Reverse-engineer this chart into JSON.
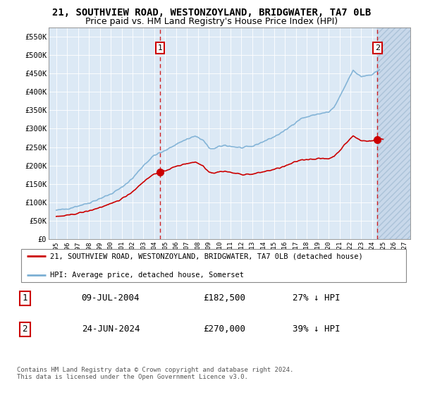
{
  "title": "21, SOUTHVIEW ROAD, WESTONZOYLAND, BRIDGWATER, TA7 0LB",
  "subtitle": "Price paid vs. HM Land Registry's House Price Index (HPI)",
  "ylim": [
    0,
    575000
  ],
  "yticks": [
    0,
    50000,
    100000,
    150000,
    200000,
    250000,
    300000,
    350000,
    400000,
    450000,
    500000,
    550000
  ],
  "ytick_labels": [
    "£0",
    "£50K",
    "£100K",
    "£150K",
    "£200K",
    "£250K",
    "£300K",
    "£350K",
    "£400K",
    "£450K",
    "£500K",
    "£550K"
  ],
  "hpi_color": "#7bafd4",
  "price_color": "#cc0000",
  "vline_color": "#cc0000",
  "plot_bg_color": "#dce9f5",
  "grid_color": "#ffffff",
  "hatch_color": "#b0c8e0",
  "legend_entry1": "21, SOUTHVIEW ROAD, WESTONZOYLAND, BRIDGWATER, TA7 0LB (detached house)",
  "legend_entry2": "HPI: Average price, detached house, Somerset",
  "table_row1_num": "1",
  "table_row1_date": "09-JUL-2004",
  "table_row1_price": "£182,500",
  "table_row1_hpi": "27% ↓ HPI",
  "table_row2_num": "2",
  "table_row2_date": "24-JUN-2024",
  "table_row2_price": "£270,000",
  "table_row2_hpi": "39% ↓ HPI",
  "footnote": "Contains HM Land Registry data © Crown copyright and database right 2024.\nThis data is licensed under the Open Government Licence v3.0.",
  "title_fontsize": 10,
  "subtitle_fontsize": 9
}
